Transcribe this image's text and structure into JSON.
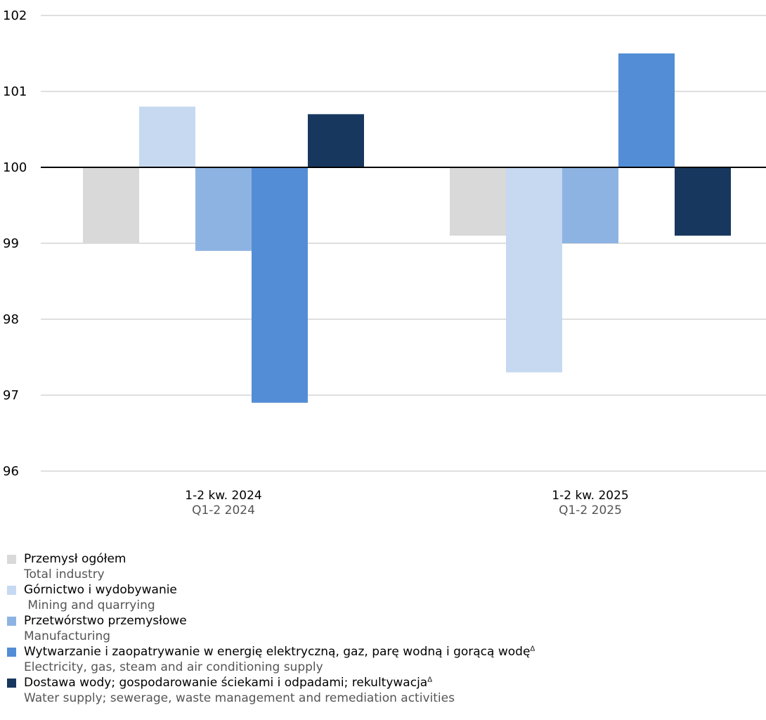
{
  "chart_data": {
    "type": "bar",
    "ylim": [
      96,
      102
    ],
    "yticks": [
      96,
      97,
      98,
      99,
      100,
      101,
      102
    ],
    "baseline": 100,
    "grid": true,
    "legend_position": "bottom",
    "categories": [
      {
        "pl": "1-2 kw. 2024",
        "en": "Q1-2 2024"
      },
      {
        "pl": "1-2 kw. 2025",
        "en": "Q1-2 2025"
      }
    ],
    "series": [
      {
        "name": "Przemysł ogółem",
        "name_en": "Total industry",
        "color": "#d9d9d9",
        "values": [
          99.0,
          99.1
        ]
      },
      {
        "name": "Górnictwo i wydobywanie",
        "name_en": " Mining and quarrying",
        "color": "#c6d9f1",
        "values": [
          100.8,
          97.3
        ]
      },
      {
        "name": "Przetwórstwo przemysłowe",
        "name_en": "Manufacturing",
        "color": "#8db3e2",
        "values": [
          98.9,
          99.0
        ]
      },
      {
        "name": "Wytwarzanie i zaopatrywanie w energię elektryczną, gaz, parę wodną i gorącą wodę",
        "name_mark": "Δ",
        "name_en": "Electricity, gas, steam and air conditioning supply",
        "color": "#538dd5",
        "values": [
          96.9,
          101.5
        ]
      },
      {
        "name": "Dostawa wody; gospodarowanie ściekami i odpadami; rekultywacja",
        "name_mark": "Δ",
        "name_en": "Water supply; sewerage, waste management and remediation activities",
        "color": "#17375e",
        "values": [
          100.7,
          99.1
        ]
      }
    ]
  }
}
